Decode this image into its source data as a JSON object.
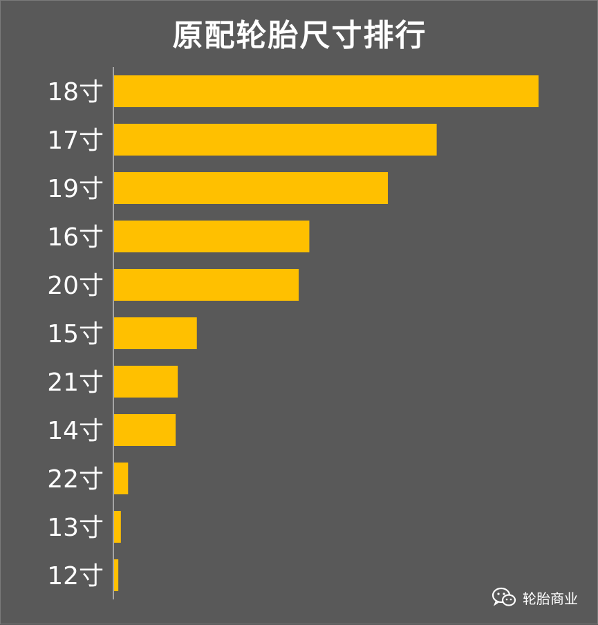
{
  "title": "原配轮胎尺寸排行",
  "watermark": {
    "text": "轮胎商业",
    "icon": "wechat-icon"
  },
  "colors": {
    "background": "#595959",
    "bar": "#FFC000",
    "text": "#FFFFFF",
    "axis": "#BFBFBF"
  },
  "chart_data": {
    "type": "bar",
    "orientation": "horizontal",
    "title": "原配轮胎尺寸排行",
    "categories": [
      "18寸",
      "17寸",
      "19寸",
      "16寸",
      "20寸",
      "15寸",
      "21寸",
      "14寸",
      "22寸",
      "13寸",
      "12寸"
    ],
    "values": [
      100,
      76,
      64.5,
      46,
      43.5,
      19.5,
      15,
      14.5,
      3.3,
      1.6,
      1.0
    ],
    "xlim": [
      0,
      100
    ],
    "grid": false,
    "legend": "none",
    "bar_color": "#FFC000"
  }
}
